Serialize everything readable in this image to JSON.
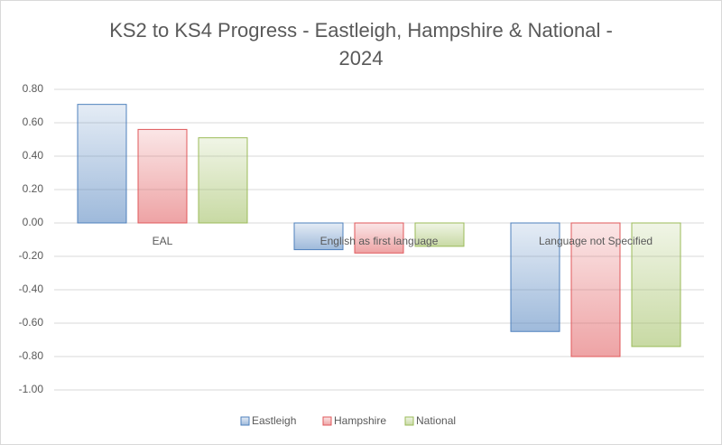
{
  "chart_data": {
    "type": "bar",
    "title": "KS2 to KS4 Progress - Eastleigh, Hampshire  & National - 2024",
    "categories": [
      "EAL",
      "English as first language",
      "Language not Specified"
    ],
    "series": [
      {
        "name": "Eastleigh",
        "color": "#4f81bd",
        "values": [
          0.71,
          -0.16,
          -0.65
        ]
      },
      {
        "name": "Hampshire",
        "color": "#e0585b",
        "values": [
          0.56,
          -0.18,
          -0.8
        ]
      },
      {
        "name": "National",
        "color": "#9bbb59",
        "values": [
          0.51,
          -0.14,
          -0.74
        ]
      }
    ],
    "ylim": [
      -1,
      0.8
    ],
    "yticks": [
      {
        "value": -1,
        "label": "-1.00"
      },
      {
        "value": -0.8,
        "label": "-0.80"
      },
      {
        "value": -0.6,
        "label": "-0.60"
      },
      {
        "value": -0.4,
        "label": "-0.40"
      },
      {
        "value": -0.2,
        "label": "-0.20"
      },
      {
        "value": 0,
        "label": "0.00"
      },
      {
        "value": 0.2,
        "label": "0.20"
      },
      {
        "value": 0.4,
        "label": "0.40"
      },
      {
        "value": 0.6,
        "label": "0.60"
      },
      {
        "value": 0.8,
        "label": "0.80"
      }
    ],
    "grid": true,
    "legend": "bottom"
  }
}
